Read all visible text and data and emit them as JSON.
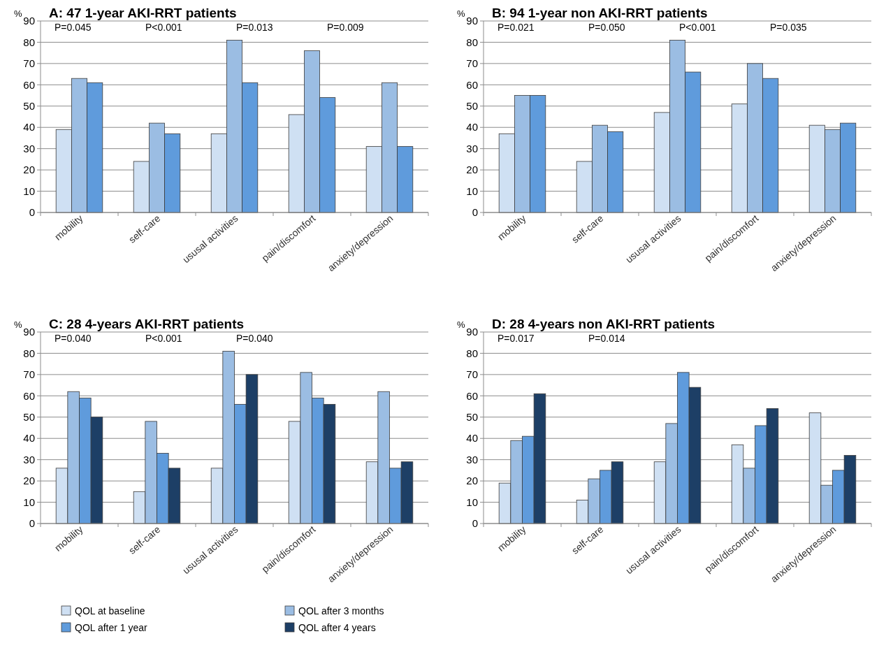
{
  "chart_data": [
    {
      "type": "bar",
      "title": "A: 47 1-year AKI-RRT patients",
      "ylabel": "%",
      "categories": [
        "mobility",
        "self-care",
        "ususal activities",
        "pain/discomfort",
        "anxiety/depression"
      ],
      "series": [
        {
          "color": "#cfe0f3",
          "values": [
            39,
            24,
            37,
            46,
            31
          ]
        },
        {
          "color": "#9bbde3",
          "values": [
            63,
            42,
            81,
            76,
            61
          ]
        },
        {
          "color": "#5f9bdc",
          "values": [
            61,
            37,
            61,
            54,
            31
          ]
        }
      ],
      "ylim": [
        0,
        90
      ],
      "yticks": [
        0,
        10,
        20,
        30,
        40,
        50,
        60,
        70,
        80,
        90
      ],
      "grid": "y",
      "annotations": [
        "P=0.045",
        "P<0.001",
        "P=0.013",
        "P=0.009"
      ]
    },
    {
      "type": "bar",
      "title": "B: 94 1-year non AKI-RRT patients",
      "ylabel": "%",
      "categories": [
        "mobility",
        "self-care",
        "ususal activities",
        "pain/discomfort",
        "anxiety/depression"
      ],
      "series": [
        {
          "color": "#cfe0f3",
          "values": [
            37,
            24,
            47,
            51,
            41
          ]
        },
        {
          "color": "#9bbde3",
          "values": [
            55,
            41,
            81,
            70,
            39
          ]
        },
        {
          "color": "#5f9bdc",
          "values": [
            55,
            38,
            66,
            63,
            42
          ]
        }
      ],
      "ylim": [
        0,
        90
      ],
      "yticks": [
        0,
        10,
        20,
        30,
        40,
        50,
        60,
        70,
        80,
        90
      ],
      "grid": "y",
      "annotations": [
        "P=0.021",
        "P=0.050",
        "P<0.001",
        "P=0.035"
      ]
    },
    {
      "type": "bar",
      "title": "C: 28 4-years AKI-RRT patients",
      "ylabel": "%",
      "categories": [
        "mobility",
        "self-care",
        "ususal activities",
        "pain/discomfort",
        "anxiety/depression"
      ],
      "series": [
        {
          "name": "QOL at baseline",
          "color": "#cfe0f3",
          "values": [
            26,
            15,
            26,
            48,
            29
          ]
        },
        {
          "name": "QOL after 3 months",
          "color": "#9bbde3",
          "values": [
            62,
            48,
            81,
            71,
            62
          ]
        },
        {
          "name": "QOL after 1 year",
          "color": "#5f9bdc",
          "values": [
            59,
            33,
            56,
            59,
            26
          ]
        },
        {
          "name": "QOL after 4 years",
          "color": "#1d3f66",
          "values": [
            50,
            26,
            70,
            56,
            29
          ]
        }
      ],
      "ylim": [
        0,
        90
      ],
      "yticks": [
        0,
        10,
        20,
        30,
        40,
        50,
        60,
        70,
        80,
        90
      ],
      "grid": "y",
      "legend": "bottom",
      "annotations": [
        "P=0.040",
        "P<0.001",
        "P=0.040"
      ]
    },
    {
      "type": "bar",
      "title": "D: 28 4-years non AKI-RRT patients",
      "ylabel": "%",
      "categories": [
        "mobility",
        "self-care",
        "ususal activities",
        "pain/discomfort",
        "anxiety/depression"
      ],
      "series": [
        {
          "color": "#cfe0f3",
          "values": [
            19,
            11,
            29,
            37,
            52
          ]
        },
        {
          "color": "#9bbde3",
          "values": [
            39,
            21,
            47,
            26,
            18
          ]
        },
        {
          "color": "#5f9bdc",
          "values": [
            41,
            25,
            71,
            46,
            25
          ]
        },
        {
          "color": "#1d3f66",
          "values": [
            61,
            29,
            64,
            54,
            32
          ]
        }
      ],
      "ylim": [
        0,
        90
      ],
      "yticks": [
        0,
        10,
        20,
        30,
        40,
        50,
        60,
        70,
        80,
        90
      ],
      "grid": "y",
      "annotations": [
        "P=0.017",
        "P=0.014"
      ]
    }
  ]
}
